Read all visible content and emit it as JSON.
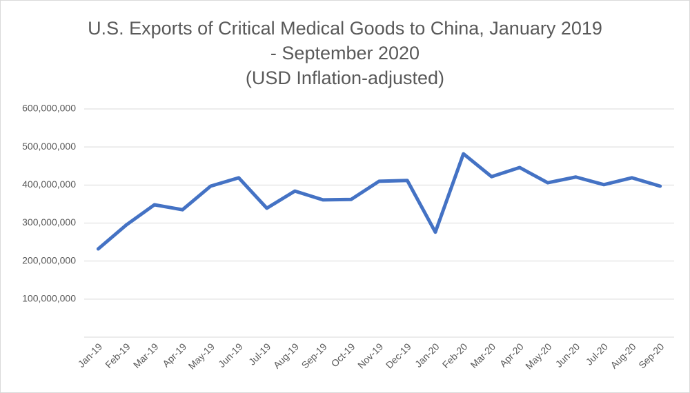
{
  "chart_data": {
    "type": "line",
    "title": [
      "U.S. Exports of Critical Medical Goods to China, January 2019",
      "- September 2020",
      "(USD Inflation-adjusted)"
    ],
    "categories": [
      "Jan-19",
      "Feb-19",
      "Mar-19",
      "Apr-19",
      "May-19",
      "Jun-19",
      "Jul-19",
      "Aug-19",
      "Sep-19",
      "Oct-19",
      "Nov-19",
      "Dec-19",
      "Jan-20",
      "Feb-20",
      "Mar-20",
      "Apr-20",
      "May-20",
      "Jun-20",
      "Jul-20",
      "Aug-20",
      "Sep-20"
    ],
    "values": [
      232000000,
      295000000,
      348000000,
      335000000,
      397000000,
      419000000,
      339000000,
      384000000,
      361000000,
      362000000,
      410000000,
      412000000,
      276000000,
      482000000,
      422000000,
      446000000,
      406000000,
      421000000,
      401000000,
      419000000,
      397000000
    ],
    "color": "#4472c4",
    "ylim": [
      0,
      600000000
    ],
    "yticks": [
      {
        "value": 100000000,
        "label": "100,000,000"
      },
      {
        "value": 200000000,
        "label": "200,000,000"
      },
      {
        "value": 300000000,
        "label": "300,000,000"
      },
      {
        "value": 400000000,
        "label": "400,000,000"
      },
      {
        "value": 500000000,
        "label": "500,000,000"
      },
      {
        "value": 600000000,
        "label": "600,000,000"
      }
    ],
    "grid": true
  }
}
